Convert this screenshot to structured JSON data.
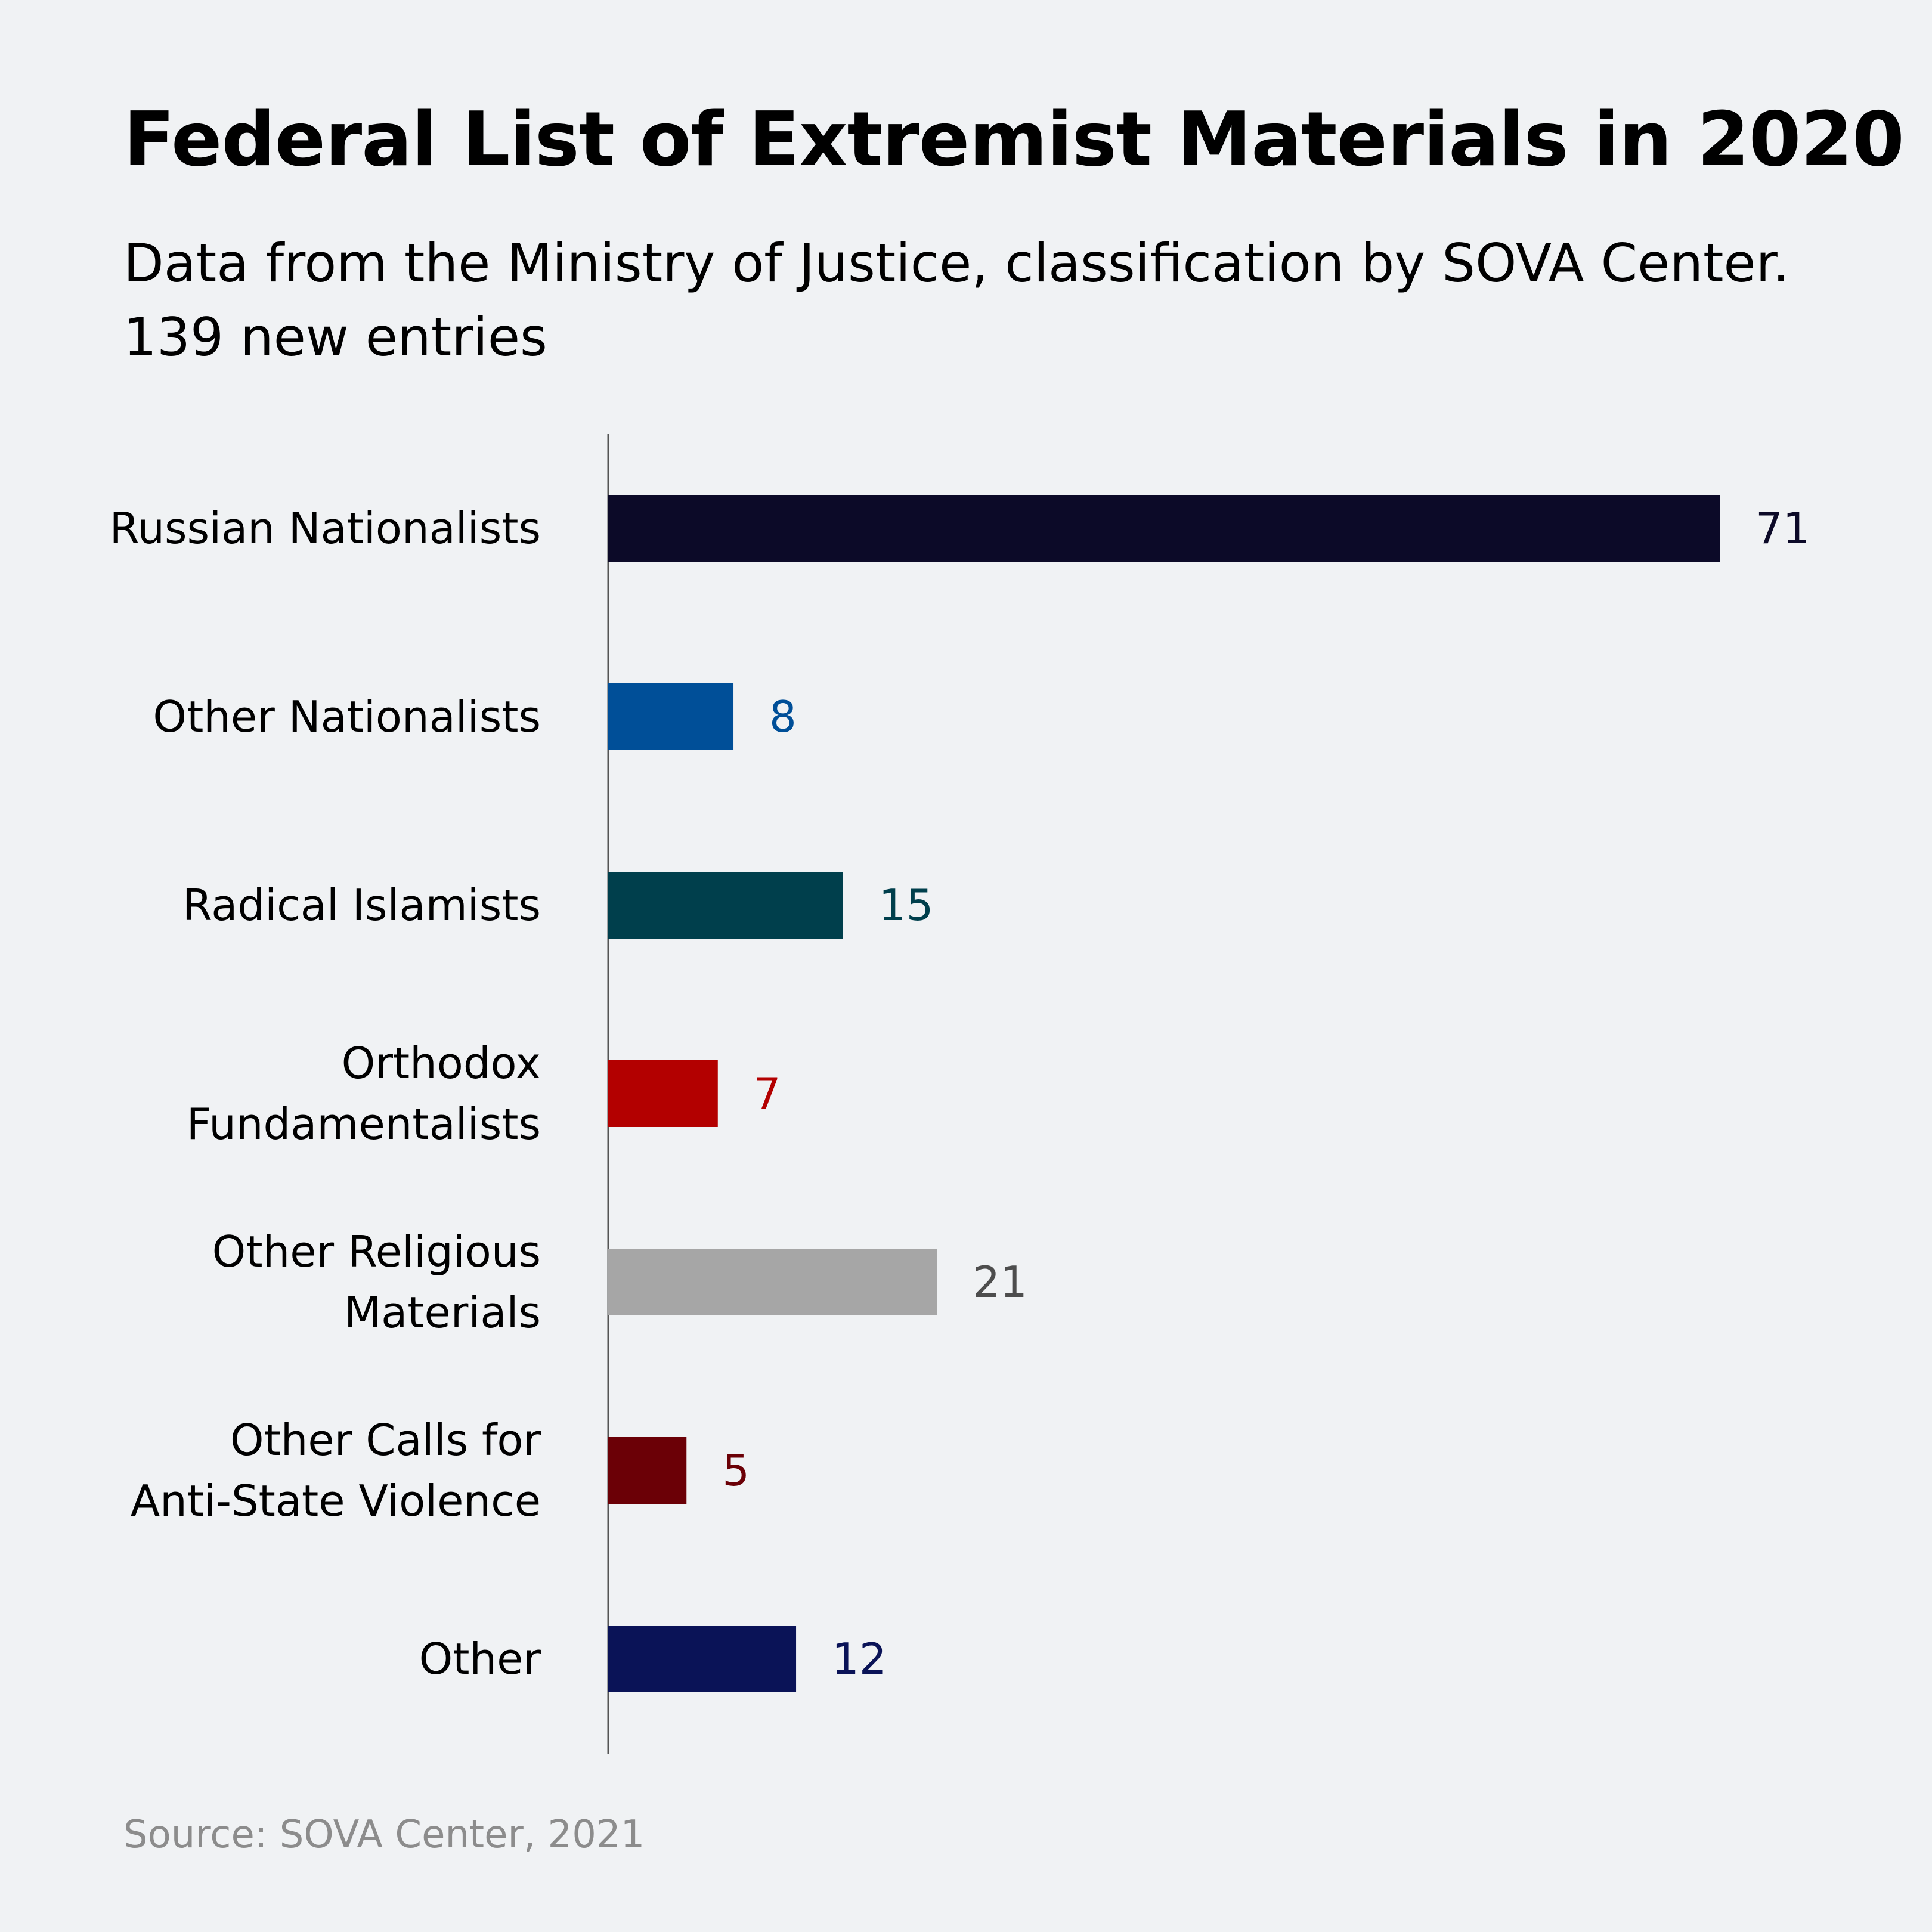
{
  "header": {
    "title": "Federal List of Extremist Materials in 2020",
    "subtitle_line1": "Data from the Ministry of Justice, classification by SOVA Center.",
    "subtitle_line2": "139 new entries"
  },
  "footer": {
    "source": "Source: SOVA Center, 2021"
  },
  "chart_data": {
    "type": "bar",
    "orientation": "horizontal",
    "title": "Federal List of Extremist Materials in 2020",
    "xlabel": "",
    "ylabel": "",
    "xlim": [
      0,
      71
    ],
    "grid": false,
    "legend": "none",
    "categories": [
      [
        "Russian Nationalists"
      ],
      [
        "Other Nationalists"
      ],
      [
        "Radical Islamists"
      ],
      [
        "Orthodox",
        "Fundamentalists"
      ],
      [
        "Other Religious",
        "Materials"
      ],
      [
        "Other Calls for",
        "Anti-State Violence"
      ],
      [
        "Other"
      ]
    ],
    "values": [
      71,
      8,
      15,
      7,
      21,
      5,
      12
    ],
    "colors": [
      "#0c0a28",
      "#004f98",
      "#003f4c",
      "#b30000",
      "#a6a6a6",
      "#6b0006",
      "#0a1357"
    ],
    "label_colors": [
      "#0c0a28",
      "#004f98",
      "#003f4c",
      "#b30000",
      "#4d4d4d",
      "#6b0006",
      "#0a1357"
    ]
  }
}
